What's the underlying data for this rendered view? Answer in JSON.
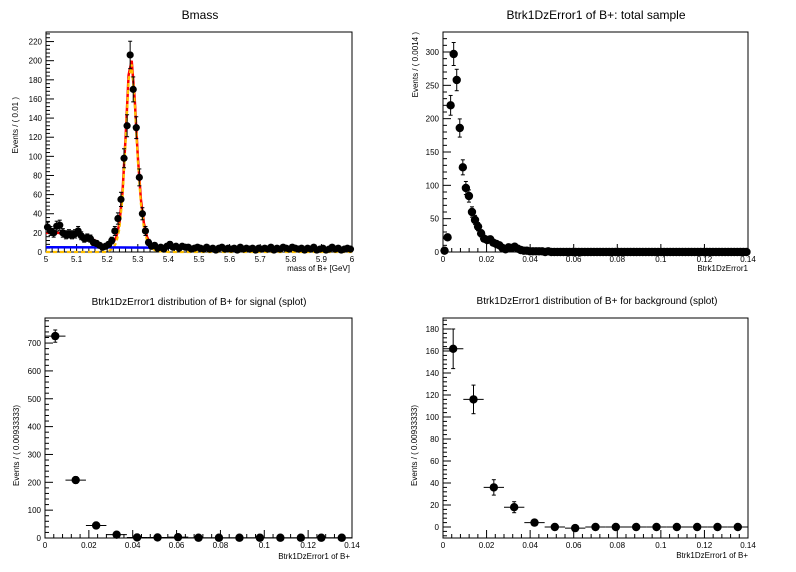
{
  "chart_data": [
    {
      "type": "scatter",
      "title": "Bmass",
      "xlabel": "mass of B+ [GeV]",
      "ylabel": "Events / ( 0.01 )",
      "xlim": [
        5,
        6
      ],
      "ylim": [
        0,
        230
      ],
      "x_ticks": [
        5,
        5.1,
        5.2,
        5.3,
        5.4,
        5.5,
        5.6,
        5.7,
        5.8,
        5.9,
        6
      ],
      "x_tick_labels": [
        "5",
        "5.1",
        "5.2",
        "5.3",
        "5.4",
        "5.5",
        "5.6",
        "5.7",
        "5.8",
        "5.9",
        "6"
      ],
      "y_ticks": [
        0,
        20,
        40,
        60,
        80,
        100,
        120,
        140,
        160,
        180,
        200,
        220
      ],
      "x_err": 0.005,
      "series": [
        {
          "style": "points",
          "x": [
            5.005,
            5.015,
            5.025,
            5.035,
            5.045,
            5.055,
            5.065,
            5.075,
            5.085,
            5.095,
            5.105,
            5.115,
            5.125,
            5.135,
            5.145,
            5.155,
            5.165,
            5.175,
            5.185,
            5.195,
            5.205,
            5.215,
            5.225,
            5.235,
            5.245,
            5.255,
            5.265,
            5.275,
            5.285,
            5.295,
            5.305,
            5.315,
            5.325,
            5.335,
            5.345,
            5.355,
            5.365,
            5.375,
            5.385,
            5.395,
            5.405,
            5.415,
            5.425,
            5.435,
            5.445,
            5.455,
            5.465,
            5.475,
            5.485,
            5.495,
            5.505,
            5.515,
            5.525,
            5.535,
            5.545,
            5.555,
            5.565,
            5.575,
            5.585,
            5.595,
            5.605,
            5.615,
            5.625,
            5.635,
            5.645,
            5.655,
            5.665,
            5.675,
            5.685,
            5.695,
            5.705,
            5.715,
            5.725,
            5.735,
            5.745,
            5.755,
            5.765,
            5.775,
            5.785,
            5.795,
            5.805,
            5.815,
            5.825,
            5.835,
            5.845,
            5.855,
            5.865,
            5.875,
            5.885,
            5.895,
            5.905,
            5.915,
            5.925,
            5.935,
            5.945,
            5.955,
            5.965,
            5.975,
            5.985,
            5.995
          ],
          "y": [
            26,
            22,
            20,
            27,
            28,
            20,
            18,
            19,
            18,
            19,
            22,
            17,
            14,
            15,
            14,
            10,
            9,
            7,
            5,
            6,
            8,
            12,
            22,
            35,
            55,
            98,
            132,
            206,
            170,
            130,
            78,
            40,
            22,
            10,
            6,
            7,
            4,
            5,
            3,
            6,
            8,
            5,
            6,
            4,
            6,
            5,
            5,
            3,
            4,
            5,
            4,
            3,
            5,
            3,
            4,
            2,
            4,
            5,
            3,
            4,
            3,
            4,
            2,
            5,
            3,
            4,
            3,
            4,
            2,
            4,
            3,
            4,
            3,
            5,
            2,
            4,
            3,
            5,
            4,
            3,
            5,
            4,
            3,
            4,
            2,
            4,
            3,
            5,
            2,
            3,
            4,
            2,
            3,
            5,
            3,
            4,
            2,
            3,
            4,
            3
          ]
        },
        {
          "style": "line",
          "color": "#ff0000",
          "x": [
            5.0,
            5.02,
            5.04,
            5.06,
            5.08,
            5.1,
            5.12,
            5.14,
            5.16,
            5.18,
            5.2,
            5.22,
            5.23,
            5.24,
            5.25,
            5.26,
            5.27,
            5.28,
            5.29,
            5.3,
            5.31,
            5.32,
            5.33,
            5.34,
            5.36,
            5.4,
            5.5,
            5.6,
            5.7,
            5.8,
            5.9,
            6.0
          ],
          "y": [
            20,
            20,
            20,
            19.5,
            19,
            18.5,
            17,
            15,
            12,
            8,
            6,
            10,
            16,
            30,
            62,
            120,
            185,
            200,
            160,
            100,
            55,
            30,
            16,
            9,
            6,
            5,
            4.6,
            4.2,
            3.8,
            3.5,
            3.2,
            3
          ]
        },
        {
          "style": "line",
          "color": "#ffbf00",
          "x": [
            5.0,
            5.2,
            5.22,
            5.23,
            5.24,
            5.25,
            5.26,
            5.27,
            5.28,
            5.29,
            5.3,
            5.31,
            5.32,
            5.33,
            5.34,
            5.36,
            5.4,
            6.0
          ],
          "y": [
            0,
            0,
            4,
            10,
            24,
            56,
            115,
            180,
            196,
            156,
            96,
            50,
            25,
            12,
            5,
            1,
            0,
            0
          ]
        },
        {
          "style": "line",
          "color": "#0000ff",
          "x": [
            5.0,
            5.2,
            5.4,
            5.6,
            5.8,
            6.0
          ],
          "y": [
            5,
            4.8,
            4.5,
            4.1,
            3.7,
            3.2
          ]
        }
      ]
    },
    {
      "type": "scatter",
      "title": "Btrk1DzError1 of B+: total sample",
      "xlabel": "Btrk1DzError1",
      "ylabel": "Events / ( 0.0014 )",
      "xlim": [
        0,
        0.14
      ],
      "ylim": [
        0,
        330
      ],
      "x_ticks": [
        0,
        0.02,
        0.04,
        0.06,
        0.08,
        0.1,
        0.12,
        0.14
      ],
      "x_tick_labels": [
        "0",
        "0.02",
        "0.04",
        "0.06",
        "0.08",
        "0.1",
        "0.12",
        "0.14"
      ],
      "y_ticks": [
        0,
        50,
        100,
        150,
        200,
        250,
        300
      ],
      "x_err": 0.0007,
      "series": [
        {
          "style": "points",
          "x": [
            0.0007,
            0.0021,
            0.0035,
            0.0049,
            0.0063,
            0.0077,
            0.0091,
            0.0105,
            0.0119,
            0.0133,
            0.0147,
            0.0161,
            0.0175,
            0.0189,
            0.0203,
            0.0217,
            0.0231,
            0.0245,
            0.0259,
            0.0273,
            0.0287,
            0.0301,
            0.0315,
            0.0329,
            0.0343,
            0.0357,
            0.0371,
            0.0385,
            0.0399,
            0.0413,
            0.0427,
            0.0441,
            0.0455,
            0.0469,
            0.0483,
            0.0497,
            0.0511,
            0.0525,
            0.0539,
            0.0553,
            0.0567,
            0.0581,
            0.0595,
            0.0609,
            0.0623,
            0.0637,
            0.0651,
            0.0665,
            0.0679,
            0.0693,
            0.0707,
            0.0721,
            0.0735,
            0.0749,
            0.0763,
            0.0777,
            0.0791,
            0.0805,
            0.0819,
            0.0833,
            0.0847,
            0.0861,
            0.0875,
            0.0889,
            0.0903,
            0.0917,
            0.0931,
            0.0945,
            0.0959,
            0.0973,
            0.0987,
            0.1001,
            0.1015,
            0.1029,
            0.1043,
            0.1057,
            0.1071,
            0.1085,
            0.1099,
            0.1113,
            0.1127,
            0.1141,
            0.1155,
            0.1169,
            0.1183,
            0.1197,
            0.1211,
            0.1225,
            0.1239,
            0.1253,
            0.1267,
            0.1281,
            0.1295,
            0.1309,
            0.1323,
            0.1337,
            0.1351,
            0.1365,
            0.1379,
            0.1393
          ],
          "y": [
            2,
            22,
            220,
            297,
            258,
            186,
            127,
            96,
            84,
            60,
            48,
            38,
            28,
            20,
            18,
            19,
            14,
            12,
            10,
            6,
            4,
            7,
            6,
            8,
            5,
            3,
            2,
            2,
            1,
            1,
            1,
            1,
            1,
            0,
            1,
            0,
            0,
            0,
            0,
            0,
            0,
            0,
            0,
            0,
            0,
            0,
            0,
            0,
            0,
            0,
            0,
            0,
            0,
            0,
            0,
            0,
            0,
            0,
            0,
            0,
            0,
            0,
            0,
            0,
            0,
            0,
            0,
            0,
            0,
            0,
            0,
            0,
            0,
            0,
            0,
            0,
            0,
            0,
            0,
            0,
            0,
            0,
            0,
            0,
            0,
            0,
            0,
            0,
            0,
            0,
            0,
            0,
            0,
            0,
            0,
            0,
            0,
            0,
            0,
            0
          ]
        }
      ]
    },
    {
      "type": "scatter",
      "title": "Btrk1DzError1 distribution of B+ for signal (splot)",
      "xlabel": "Btrk1DzError1 of B+",
      "ylabel": "Events / ( 0.00933333)",
      "xlim": [
        0,
        0.14
      ],
      "ylim": [
        0,
        790
      ],
      "x_ticks": [
        0,
        0.02,
        0.04,
        0.06,
        0.08,
        0.1,
        0.12,
        0.14
      ],
      "x_tick_labels": [
        "0",
        "0.02",
        "0.04",
        "0.06",
        "0.08",
        "0.1",
        "0.12",
        "0.14"
      ],
      "y_ticks": [
        0,
        100,
        200,
        300,
        400,
        500,
        600,
        700
      ],
      "x_err": 0.00467,
      "series": [
        {
          "style": "points",
          "x": [
            0.00467,
            0.014,
            0.02333,
            0.03267,
            0.042,
            0.05133,
            0.06067,
            0.07,
            0.07933,
            0.08867,
            0.098,
            0.10733,
            0.11667,
            0.126,
            0.13533
          ],
          "y": [
            725,
            208,
            45,
            12,
            2,
            2,
            3,
            1,
            1,
            1,
            1,
            1,
            1,
            1,
            1
          ],
          "y_err": [
            22,
            12,
            6,
            3,
            1,
            1,
            2,
            1,
            1,
            1,
            1,
            1,
            1,
            1,
            1
          ]
        }
      ]
    },
    {
      "type": "scatter",
      "title": "Btrk1DzError1 distribution of B+ for background (splot)",
      "xlabel": "Btrk1DzError1 of B+",
      "ylabel": "Events / ( 0.00933333)",
      "xlim": [
        0,
        0.14
      ],
      "ylim": [
        -10,
        190
      ],
      "x_ticks": [
        0,
        0.02,
        0.04,
        0.06,
        0.08,
        0.1,
        0.12,
        0.14
      ],
      "x_tick_labels": [
        "0",
        "0.02",
        "0.04",
        "0.06",
        "0.08",
        "0.1",
        "0.12",
        "0.14"
      ],
      "y_ticks": [
        0,
        20,
        40,
        60,
        80,
        100,
        120,
        140,
        160,
        180
      ],
      "x_err": 0.00467,
      "series": [
        {
          "style": "points",
          "x": [
            0.00467,
            0.014,
            0.02333,
            0.03267,
            0.042,
            0.05133,
            0.06067,
            0.07,
            0.07933,
            0.08867,
            0.098,
            0.10733,
            0.11667,
            0.126,
            0.13533
          ],
          "y": [
            162,
            116,
            36,
            18,
            4,
            0,
            -1,
            0,
            0,
            0,
            0,
            0,
            0,
            0,
            0
          ],
          "y_err": [
            18,
            13,
            7,
            5,
            2,
            1,
            2,
            1,
            1,
            1,
            1,
            1,
            1,
            1,
            1
          ]
        }
      ]
    }
  ]
}
